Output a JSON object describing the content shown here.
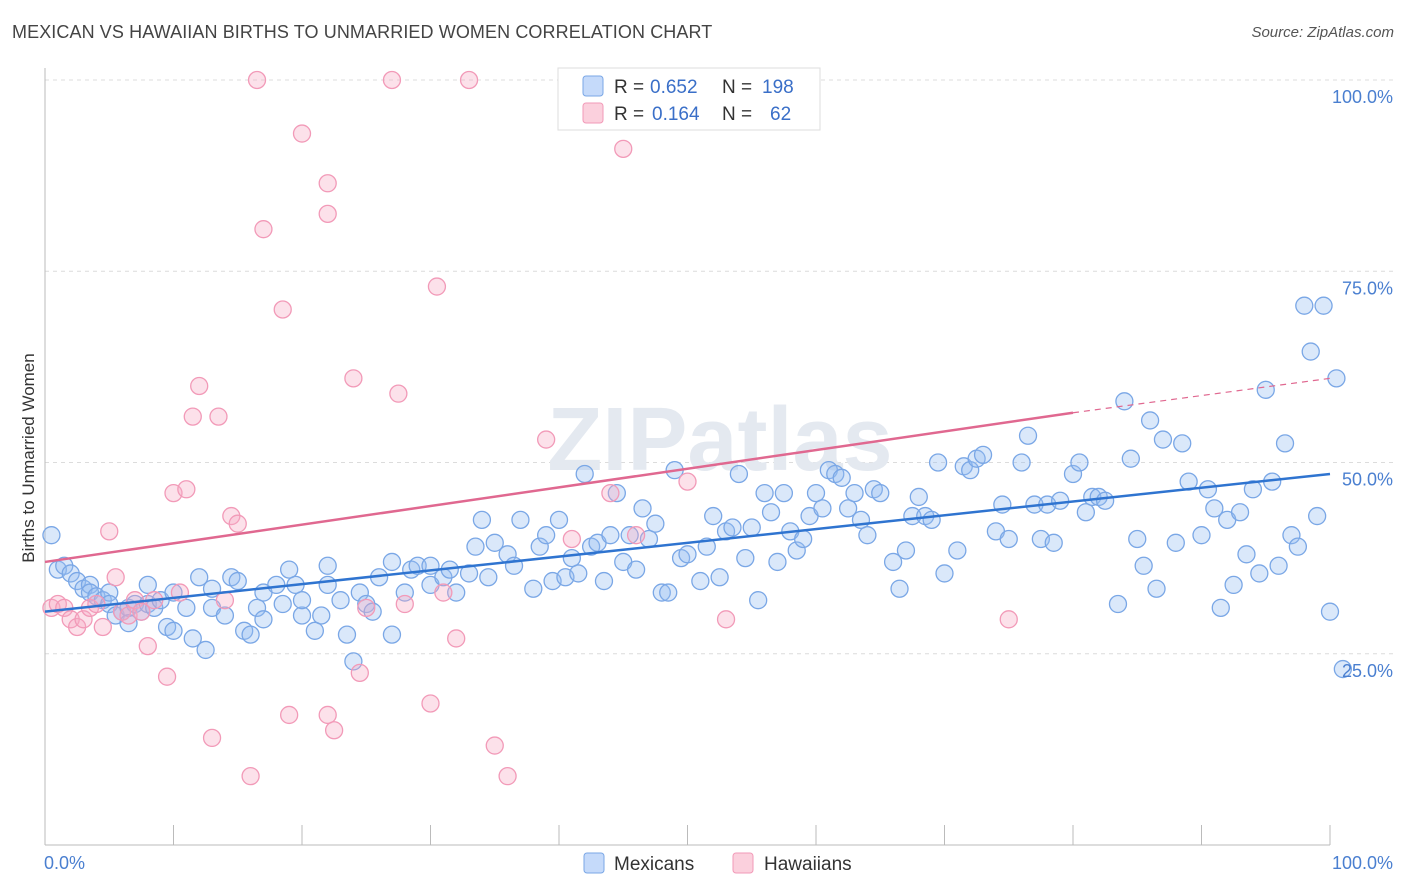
{
  "title": "MEXICAN VS HAWAIIAN BIRTHS TO UNMARRIED WOMEN CORRELATION CHART",
  "source": "Source: ZipAtlas.com",
  "watermark": "ZIPatlas",
  "chart_data": {
    "type": "scatter",
    "ylabel": "Births to Unmarried Women",
    "xlim": [
      0,
      100
    ],
    "ylim": [
      0,
      100
    ],
    "x_tick_labels": [
      "0.0%",
      "100.0%"
    ],
    "y_ticks": [
      25,
      50,
      75,
      100
    ],
    "y_tick_labels": [
      "25.0%",
      "50.0%",
      "75.0%",
      "100.0%"
    ],
    "grid": true,
    "legend_position": "top-center",
    "legend": [
      {
        "r_label": "R = ",
        "r": "0.652",
        "n_label": "N = ",
        "n": "198"
      },
      {
        "r_label": "R = ",
        "r": "0.164",
        "n_label": "N = ",
        "n": "62"
      }
    ],
    "series": [
      {
        "name": "Mexicans",
        "color": "#7aa7e6",
        "line_color": "#2f74d0",
        "trend": {
          "x": [
            0,
            100
          ],
          "y": [
            30.5,
            48.5
          ]
        },
        "points": [
          [
            0.5,
            40.5
          ],
          [
            1,
            36
          ],
          [
            1.5,
            36.5
          ],
          [
            2,
            35.5
          ],
          [
            2.5,
            34.5
          ],
          [
            3,
            33.5
          ],
          [
            3.5,
            34
          ],
          [
            3.5,
            33
          ],
          [
            4,
            32.5
          ],
          [
            4.5,
            32
          ],
          [
            5,
            33
          ],
          [
            5,
            31.5
          ],
          [
            5.5,
            30
          ],
          [
            6,
            30.5
          ],
          [
            6.5,
            31
          ],
          [
            6.5,
            29
          ],
          [
            7,
            31.5
          ],
          [
            7.5,
            30.5
          ],
          [
            8,
            31.5
          ],
          [
            8,
            34
          ],
          [
            8.5,
            31
          ],
          [
            9,
            32
          ],
          [
            9.5,
            28.5
          ],
          [
            10,
            33
          ],
          [
            10,
            28
          ],
          [
            11,
            31
          ],
          [
            11.5,
            27
          ],
          [
            12,
            35
          ],
          [
            12.5,
            25.5
          ],
          [
            13,
            33.5
          ],
          [
            13,
            31
          ],
          [
            14,
            30
          ],
          [
            14.5,
            35
          ],
          [
            15,
            34.5
          ],
          [
            15.5,
            28
          ],
          [
            16,
            27.5
          ],
          [
            16.5,
            31
          ],
          [
            17,
            33
          ],
          [
            17,
            29.5
          ],
          [
            18,
            34
          ],
          [
            18.5,
            31.5
          ],
          [
            19,
            36
          ],
          [
            19.5,
            34
          ],
          [
            20,
            30
          ],
          [
            20,
            32
          ],
          [
            21,
            28
          ],
          [
            21.5,
            30
          ],
          [
            22,
            34
          ],
          [
            22,
            36.5
          ],
          [
            23,
            32
          ],
          [
            23.5,
            27.5
          ],
          [
            24,
            24
          ],
          [
            24.5,
            33
          ],
          [
            25,
            31.5
          ],
          [
            25.5,
            30.5
          ],
          [
            26,
            35
          ],
          [
            27,
            37
          ],
          [
            27,
            27.5
          ],
          [
            28,
            33
          ],
          [
            28.5,
            36
          ],
          [
            29,
            36.5
          ],
          [
            30,
            34
          ],
          [
            30,
            36.5
          ],
          [
            31,
            35
          ],
          [
            31.5,
            36
          ],
          [
            32,
            33
          ],
          [
            33,
            35.5
          ],
          [
            33.5,
            39
          ],
          [
            34,
            42.5
          ],
          [
            34.5,
            35
          ],
          [
            35,
            39.5
          ],
          [
            36,
            38
          ],
          [
            36.5,
            36.5
          ],
          [
            37,
            42.5
          ],
          [
            38,
            33.5
          ],
          [
            38.5,
            39
          ],
          [
            39,
            40.5
          ],
          [
            39.5,
            34.5
          ],
          [
            40,
            42.5
          ],
          [
            40.5,
            35
          ],
          [
            41,
            37.5
          ],
          [
            41.5,
            35.5
          ],
          [
            42,
            48.5
          ],
          [
            42.5,
            39
          ],
          [
            43,
            39.5
          ],
          [
            43.5,
            34.5
          ],
          [
            44,
            40.5
          ],
          [
            44.5,
            46
          ],
          [
            45,
            37
          ],
          [
            45.5,
            40.5
          ],
          [
            46,
            36
          ],
          [
            46.5,
            44
          ],
          [
            47,
            40
          ],
          [
            47.5,
            42
          ],
          [
            48,
            33
          ],
          [
            48.5,
            33
          ],
          [
            49,
            49
          ],
          [
            49.5,
            37.5
          ],
          [
            50,
            38
          ],
          [
            51,
            34.5
          ],
          [
            51.5,
            39
          ],
          [
            52,
            43
          ],
          [
            52.5,
            35
          ],
          [
            53,
            41
          ],
          [
            53.5,
            41.5
          ],
          [
            54,
            48.5
          ],
          [
            54.5,
            37.5
          ],
          [
            55,
            41.5
          ],
          [
            55.5,
            32
          ],
          [
            56,
            46
          ],
          [
            56.5,
            43.5
          ],
          [
            57,
            37
          ],
          [
            57.5,
            46
          ],
          [
            58,
            41
          ],
          [
            58.5,
            38.5
          ],
          [
            59,
            40
          ],
          [
            59.5,
            43
          ],
          [
            60,
            46
          ],
          [
            60.5,
            44
          ],
          [
            61,
            49
          ],
          [
            61.5,
            48.5
          ],
          [
            62,
            48
          ],
          [
            62.5,
            44
          ],
          [
            63,
            46
          ],
          [
            63.5,
            42.5
          ],
          [
            64,
            40.5
          ],
          [
            64.5,
            46.5
          ],
          [
            65,
            46
          ],
          [
            66,
            37
          ],
          [
            66.5,
            33.5
          ],
          [
            67,
            38.5
          ],
          [
            67.5,
            43
          ],
          [
            68,
            45.5
          ],
          [
            68.5,
            43
          ],
          [
            69,
            42.5
          ],
          [
            69.5,
            50
          ],
          [
            70,
            35.5
          ],
          [
            71,
            38.5
          ],
          [
            71.5,
            49.5
          ],
          [
            72,
            49
          ],
          [
            72.5,
            50.5
          ],
          [
            73,
            51
          ],
          [
            74,
            41
          ],
          [
            74.5,
            44.5
          ],
          [
            75,
            40
          ],
          [
            76,
            50
          ],
          [
            76.5,
            53.5
          ],
          [
            77,
            44.5
          ],
          [
            77.5,
            40
          ],
          [
            78,
            44.5
          ],
          [
            78.5,
            39.5
          ],
          [
            79,
            45
          ],
          [
            80,
            48.5
          ],
          [
            80.5,
            50
          ],
          [
            81,
            43.5
          ],
          [
            81.5,
            45.5
          ],
          [
            82,
            45.5
          ],
          [
            82.5,
            45
          ],
          [
            83.5,
            31.5
          ],
          [
            84,
            58
          ],
          [
            84.5,
            50.5
          ],
          [
            85,
            40
          ],
          [
            85.5,
            36.5
          ],
          [
            86,
            55.5
          ],
          [
            86.5,
            33.5
          ],
          [
            87,
            53
          ],
          [
            88,
            39.5
          ],
          [
            88.5,
            52.5
          ],
          [
            89,
            47.5
          ],
          [
            90,
            40.5
          ],
          [
            90.5,
            46.5
          ],
          [
            91,
            44
          ],
          [
            91.5,
            31
          ],
          [
            92,
            42.5
          ],
          [
            92.5,
            34
          ],
          [
            93,
            43.5
          ],
          [
            93.5,
            38
          ],
          [
            94,
            46.5
          ],
          [
            94.5,
            35.5
          ],
          [
            95,
            59.5
          ],
          [
            95.5,
            47.5
          ],
          [
            96,
            36.5
          ],
          [
            96.5,
            52.5
          ],
          [
            97,
            40.5
          ],
          [
            97.5,
            39
          ],
          [
            98,
            70.5
          ],
          [
            98.5,
            64.5
          ],
          [
            99,
            43
          ],
          [
            99.5,
            70.5
          ],
          [
            100,
            30.5
          ],
          [
            100.5,
            61
          ],
          [
            101,
            23
          ]
        ]
      },
      {
        "name": "Hawaiians",
        "color": "#f29ab8",
        "line_color": "#e06890",
        "trend": {
          "x": [
            0,
            80
          ],
          "y": [
            37,
            56.5
          ]
        },
        "trend_dashed": {
          "x": [
            80,
            100
          ],
          "y": [
            56.5,
            61
          ]
        },
        "points": [
          [
            0.5,
            31
          ],
          [
            1,
            31.5
          ],
          [
            1.5,
            31
          ],
          [
            2,
            29.5
          ],
          [
            2.5,
            28.5
          ],
          [
            3,
            29.5
          ],
          [
            3.5,
            31
          ],
          [
            4,
            31.5
          ],
          [
            4.5,
            28.5
          ],
          [
            5,
            41
          ],
          [
            5.5,
            35
          ],
          [
            6,
            30.5
          ],
          [
            6.5,
            30
          ],
          [
            7,
            32
          ],
          [
            7.5,
            30.5
          ],
          [
            8,
            26
          ],
          [
            8.5,
            32
          ],
          [
            9.5,
            22
          ],
          [
            10,
            46
          ],
          [
            10.5,
            33
          ],
          [
            11,
            46.5
          ],
          [
            11.5,
            56
          ],
          [
            12,
            60
          ],
          [
            13,
            14
          ],
          [
            13.5,
            56
          ],
          [
            14,
            32
          ],
          [
            14.5,
            43
          ],
          [
            15,
            42
          ],
          [
            16,
            9
          ],
          [
            16.5,
            100
          ],
          [
            17,
            80.5
          ],
          [
            18.5,
            70
          ],
          [
            19,
            17
          ],
          [
            20,
            93
          ],
          [
            22,
            86.5
          ],
          [
            22,
            82.5
          ],
          [
            22,
            17
          ],
          [
            22.5,
            15
          ],
          [
            24,
            61
          ],
          [
            24.5,
            22.5
          ],
          [
            25,
            31
          ],
          [
            27,
            100
          ],
          [
            27.5,
            59
          ],
          [
            28,
            31.5
          ],
          [
            30,
            18.5
          ],
          [
            30.5,
            73
          ],
          [
            31,
            33
          ],
          [
            32,
            27
          ],
          [
            33,
            100
          ],
          [
            35,
            13
          ],
          [
            36,
            9
          ],
          [
            39,
            53
          ],
          [
            41,
            40
          ],
          [
            44,
            46
          ],
          [
            45,
            91
          ],
          [
            46,
            40.5
          ],
          [
            50,
            47.5
          ],
          [
            53,
            29.5
          ],
          [
            75,
            29.5
          ]
        ]
      }
    ]
  },
  "bottom_legend": [
    "Mexicans",
    "Hawaiians"
  ]
}
